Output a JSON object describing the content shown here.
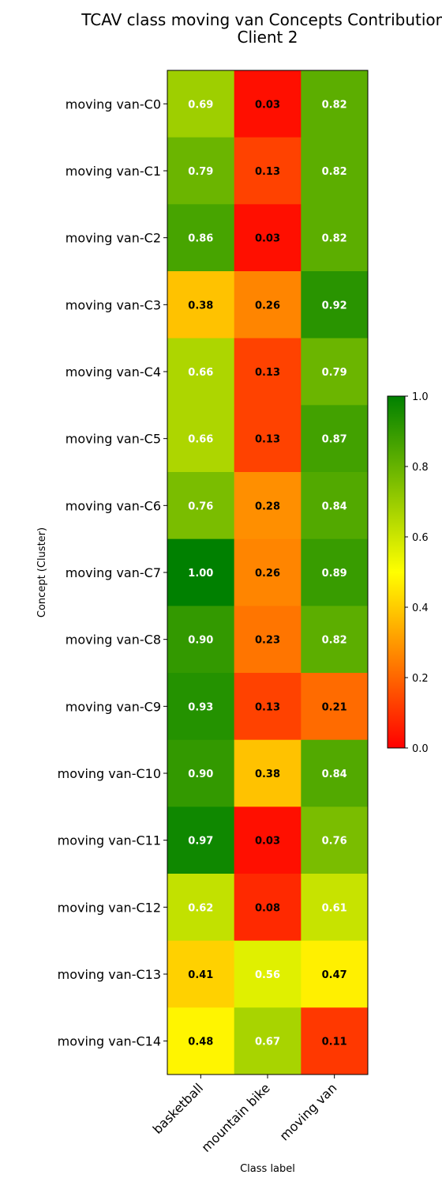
{
  "chart_data": {
    "type": "heatmap",
    "title_line1": "TCAV class moving van Concepts Contributions",
    "title_line2": "Client 2",
    "xlabel": "Class label",
    "ylabel": "Concept (Cluster)",
    "columns": [
      "basketball",
      "mountain bike",
      "moving van"
    ],
    "rows": [
      "moving van-C0",
      "moving van-C1",
      "moving van-C2",
      "moving van-C3",
      "moving van-C4",
      "moving van-C5",
      "moving van-C6",
      "moving van-C7",
      "moving van-C8",
      "moving van-C9",
      "moving van-C10",
      "moving van-C11",
      "moving van-C12",
      "moving van-C13",
      "moving van-C14"
    ],
    "values": [
      [
        0.69,
        0.03,
        0.82
      ],
      [
        0.79,
        0.13,
        0.82
      ],
      [
        0.86,
        0.03,
        0.82
      ],
      [
        0.38,
        0.26,
        0.92
      ],
      [
        0.66,
        0.13,
        0.79
      ],
      [
        0.66,
        0.13,
        0.87
      ],
      [
        0.76,
        0.28,
        0.84
      ],
      [
        1.0,
        0.26,
        0.89
      ],
      [
        0.9,
        0.23,
        0.82
      ],
      [
        0.93,
        0.13,
        0.21
      ],
      [
        0.9,
        0.38,
        0.84
      ],
      [
        0.97,
        0.03,
        0.76
      ],
      [
        0.62,
        0.08,
        0.61
      ],
      [
        0.41,
        0.56,
        0.47
      ],
      [
        0.48,
        0.67,
        0.11
      ]
    ],
    "colorbar": {
      "range": [
        0.0,
        1.0
      ],
      "ticks": [
        "0.0",
        "0.2",
        "0.4",
        "0.6",
        "0.8",
        "1.0"
      ],
      "colors": [
        "#ff0000",
        "#ffff00",
        "#008000"
      ]
    }
  }
}
